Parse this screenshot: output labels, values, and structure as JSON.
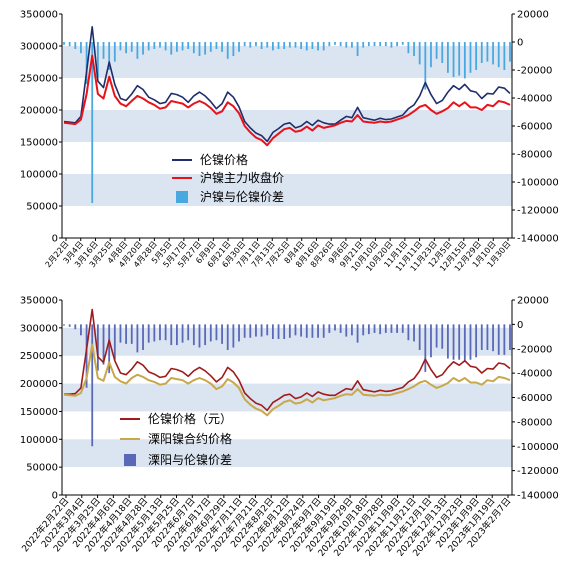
{
  "chart_data": [
    {
      "type": "line",
      "title": "",
      "xlabel": "",
      "ylabel": "",
      "ylim": [
        0,
        350000
      ],
      "yticks": [
        0,
        50000,
        100000,
        150000,
        200000,
        250000,
        300000,
        350000
      ],
      "y2lim": [
        -140000,
        20000
      ],
      "y2ticks": [
        -140000,
        -120000,
        -100000,
        -80000,
        -60000,
        -40000,
        -20000,
        0,
        20000
      ],
      "bands": "alternating light blue horizontal bands",
      "legend_position": "lower-left inside plot",
      "xticks": [
        "2月22日",
        "3月4日",
        "3月16日",
        "3月25日",
        "4月8日",
        "4月20日",
        "4月28日",
        "5月5日",
        "5月17日",
        "5月27日",
        "6月9日",
        "6月21日",
        "6月30日",
        "7月11日",
        "7月13日",
        "7月25日",
        "8月4日",
        "8月16日",
        "8月26日",
        "9月6日",
        "9月21日",
        "10月10日",
        "10月20日",
        "11月1日",
        "11月11日",
        "11月23日",
        "12月5日",
        "12月15日",
        "12月29日",
        "1月10日",
        "1月30日"
      ],
      "series": [
        {
          "name": "伦镍价格",
          "axis": "left",
          "color": "#1f2d6b",
          "values": [
            182000,
            181000,
            180000,
            190000,
            260000,
            330000,
            245000,
            235000,
            275000,
            240000,
            218000,
            215000,
            225000,
            238000,
            232000,
            220000,
            216000,
            210000,
            212000,
            226000,
            224000,
            220000,
            212000,
            222000,
            228000,
            222000,
            213000,
            202000,
            210000,
            228000,
            220000,
            205000,
            182000,
            172000,
            164000,
            160000,
            151000,
            165000,
            171000,
            178000,
            180000,
            172000,
            175000,
            182000,
            176000,
            184000,
            180000,
            178000,
            178000,
            184000,
            190000,
            188000,
            204000,
            188000,
            186000,
            184000,
            187000,
            185000,
            186000,
            189000,
            192000,
            202000,
            208000,
            222000,
            243000,
            224000,
            210000,
            215000,
            228000,
            238000,
            232000,
            240000,
            230000,
            228000,
            218000,
            226000,
            225000,
            236000,
            234000,
            226000
          ]
        },
        {
          "name": "沪镍主力收盘价",
          "axis": "left",
          "color": "#e8121b",
          "values": [
            180000,
            179000,
            178000,
            185000,
            225000,
            285000,
            225000,
            218000,
            252000,
            222000,
            210000,
            206000,
            214000,
            222000,
            218000,
            212000,
            208000,
            202000,
            204000,
            214000,
            212000,
            210000,
            204000,
            210000,
            214000,
            210000,
            203000,
            194000,
            198000,
            212000,
            206000,
            195000,
            175000,
            165000,
            157000,
            153000,
            145000,
            156000,
            163000,
            170000,
            172000,
            166000,
            168000,
            174000,
            168000,
            176000,
            172000,
            174000,
            176000,
            180000,
            183000,
            182000,
            192000,
            182000,
            181000,
            180000,
            182000,
            181000,
            182000,
            185000,
            188000,
            192000,
            198000,
            205000,
            208000,
            200000,
            194000,
            198000,
            203000,
            212000,
            206000,
            212000,
            204000,
            204000,
            200000,
            208000,
            206000,
            214000,
            212000,
            208000
          ]
        },
        {
          "name": "沪镍与伦镍价差",
          "axis": "right",
          "type": "bar",
          "color": "#4aa8e0",
          "values": [
            -2000,
            -3000,
            -5000,
            -8000,
            -30000,
            -115000,
            -25000,
            -12000,
            -20000,
            -14000,
            -6000,
            -8000,
            -7000,
            -12000,
            -9000,
            -6000,
            -5000,
            -4000,
            -6000,
            -9000,
            -7000,
            -6000,
            -5000,
            -8000,
            -10000,
            -9000,
            -7000,
            -5000,
            -7000,
            -12000,
            -10000,
            -7000,
            -3000,
            -4000,
            -3000,
            -5000,
            -4000,
            -6000,
            -5000,
            -5000,
            -4000,
            -4000,
            -5000,
            -6000,
            -5000,
            -6000,
            -6000,
            -3000,
            -2000,
            -3000,
            -4000,
            -4000,
            -10000,
            -4000,
            -3000,
            -3000,
            -3000,
            -3000,
            -4000,
            -3000,
            -2000,
            -8000,
            -10000,
            -16000,
            -34000,
            -18000,
            -12000,
            -15000,
            -22000,
            -25000,
            -24000,
            -26000,
            -22000,
            -20000,
            -15000,
            -14000,
            -16000,
            -18000,
            -20000,
            -14000
          ]
        }
      ]
    },
    {
      "type": "line",
      "title": "",
      "xlabel": "",
      "ylabel": "",
      "ylim": [
        0,
        350000
      ],
      "yticks": [
        0,
        50000,
        100000,
        150000,
        200000,
        250000,
        300000,
        350000
      ],
      "y2lim": [
        -140000,
        20000
      ],
      "y2ticks": [
        -140000,
        -120000,
        -100000,
        -80000,
        -60000,
        -40000,
        -20000,
        0,
        20000
      ],
      "bands": "alternating light blue horizontal bands",
      "legend_position": "lower-left inside plot",
      "xticks": [
        "2022年2月22日",
        "2022年3月4日",
        "2022年3月25日",
        "2022年4月6日",
        "2022年4月18日",
        "2022年4月28日",
        "2022年5月13日",
        "2022年5月25日",
        "2022年6月7日",
        "2022年6月17日",
        "2022年6月29日",
        "2022年7月11日",
        "2022年7月21日",
        "2022年8月2日",
        "2022年8月12日",
        "2022年8月24日",
        "2022年9月7日",
        "2022年9月19日",
        "2022年9月29日",
        "2022年10月18日",
        "2022年10月28日",
        "2022年11月9日",
        "2022年11月21日",
        "2022年12月1日",
        "2022年12月13日",
        "2022年12月23日",
        "2023年1月9日",
        "2023年1月19日",
        "2023年2月7日"
      ],
      "series": [
        {
          "name": "伦镍价格（元）",
          "axis": "left",
          "color": "#a01b1b",
          "values": [
            181000,
            181000,
            182000,
            192000,
            262000,
            333000,
            248000,
            238000,
            278000,
            241000,
            219000,
            216000,
            226000,
            239000,
            233000,
            221000,
            217000,
            211000,
            213000,
            227000,
            225000,
            221000,
            213000,
            223000,
            229000,
            223000,
            214000,
            203000,
            211000,
            229000,
            221000,
            206000,
            183000,
            173000,
            165000,
            161000,
            152000,
            166000,
            172000,
            179000,
            181000,
            173000,
            176000,
            183000,
            177000,
            185000,
            181000,
            179000,
            179000,
            185000,
            191000,
            189000,
            205000,
            189000,
            187000,
            185000,
            188000,
            186000,
            187000,
            190000,
            193000,
            203000,
            209000,
            223000,
            244000,
            225000,
            211000,
            216000,
            229000,
            239000,
            233000,
            241000,
            231000,
            229000,
            219000,
            227000,
            226000,
            237000,
            235000,
            227000
          ]
        },
        {
          "name": "溧阳镍合约价格",
          "axis": "left",
          "color": "#c8a84b",
          "values": [
            180000,
            179000,
            178000,
            183000,
            210000,
            270000,
            210000,
            205000,
            238000,
            212000,
            204000,
            200000,
            210000,
            216000,
            212000,
            206000,
            203000,
            198000,
            200000,
            210000,
            208000,
            206000,
            200000,
            206000,
            210000,
            206000,
            200000,
            190000,
            195000,
            208000,
            202000,
            192000,
            172000,
            162000,
            155000,
            151000,
            143000,
            154000,
            160000,
            167000,
            170000,
            164000,
            166000,
            172000,
            166000,
            174000,
            170000,
            172000,
            174000,
            178000,
            181000,
            180000,
            190000,
            180000,
            179000,
            178000,
            180000,
            179000,
            180000,
            183000,
            186000,
            190000,
            195000,
            202000,
            205000,
            198000,
            192000,
            196000,
            201000,
            210000,
            204000,
            210000,
            202000,
            202000,
            198000,
            206000,
            204000,
            212000,
            210000,
            206000
          ]
        },
        {
          "name": "溧阳与伦镍价差",
          "axis": "right",
          "type": "bar",
          "color": "#5a68b8",
          "values": [
            -1000,
            -2000,
            -4000,
            -9000,
            -52000,
            -100000,
            -38000,
            -33000,
            -40000,
            -29000,
            -15000,
            -16000,
            -16000,
            -23000,
            -21000,
            -15000,
            -14000,
            -13000,
            -13000,
            -17000,
            -17000,
            -15000,
            -13000,
            -17000,
            -19000,
            -17000,
            -14000,
            -13000,
            -16000,
            -21000,
            -19000,
            -14000,
            -11000,
            -11000,
            -10000,
            -10000,
            -9000,
            -12000,
            -12000,
            -12000,
            -11000,
            -9000,
            -10000,
            -11000,
            -11000,
            -11000,
            -11000,
            -7000,
            -5000,
            -7000,
            -10000,
            -9000,
            -15000,
            -9000,
            -8000,
            -7000,
            -8000,
            -7000,
            -7000,
            -7000,
            -7000,
            -13000,
            -14000,
            -21000,
            -39000,
            -27000,
            -19000,
            -20000,
            -28000,
            -29000,
            -29000,
            -31000,
            -29000,
            -27000,
            -21000,
            -21000,
            -22000,
            -25000,
            -25000,
            -21000
          ]
        }
      ]
    }
  ]
}
